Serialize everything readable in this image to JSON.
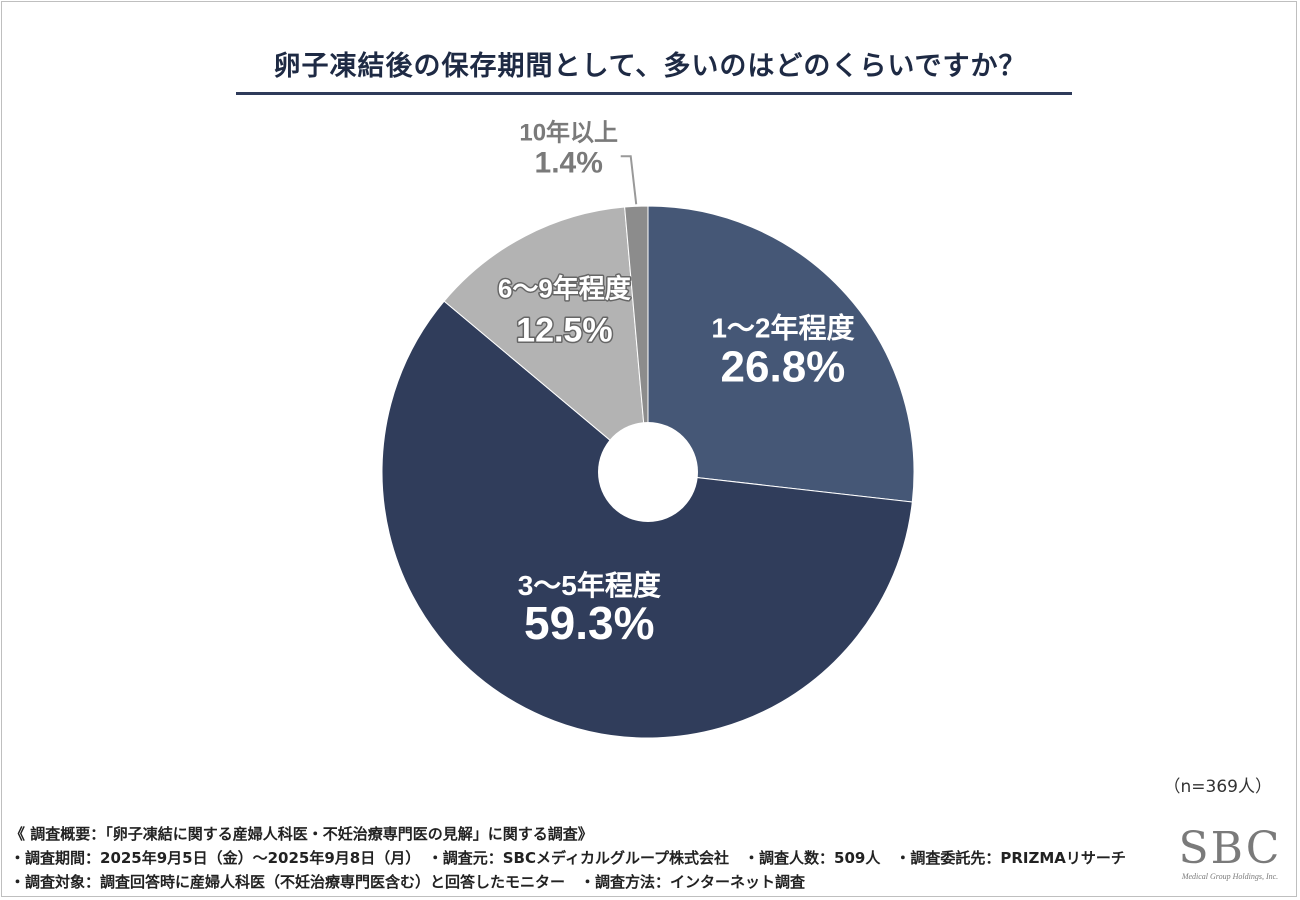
{
  "title": "卵子凍結後の保存期間として、多いのはどのくらいですか？",
  "sample_size": "（n=369人）",
  "footnotes": [
    "《 調査概要：「卵子凍結に関する産婦人科医・不妊治療専門医の見解」に関する調査》",
    "・調査期間：2025年9月5日（金）～2025年9月8日（月）　・調査元：SBCメディカルグループ株式会社　・調査人数：509人　・調査委託先：PRIZMAリサーチ",
    "・調査対象：調査回答時に産婦人科医（不妊治療専門医含む）と回答したモニター　・調査方法：インターネット調査"
  ],
  "logo": {
    "mark": "SBC",
    "sub": "Medical Group Holdings, Inc."
  },
  "chart_data": {
    "type": "pie",
    "title": "卵子凍結後の保存期間として、多いのはどのくらいですか？",
    "donut": true,
    "start": "12 o'clock, clockwise",
    "slices": [
      {
        "label": "1～2年程度",
        "value": 26.8,
        "value_label": "26.8%",
        "color": "#455776",
        "text_color": "#ffffff"
      },
      {
        "label": "3～5年程度",
        "value": 59.3,
        "value_label": "59.3%",
        "color": "#303d5b",
        "text_color": "#ffffff"
      },
      {
        "label": "6～9年程度",
        "value": 12.5,
        "value_label": "12.5%",
        "color": "#b3b3b3",
        "text_color": "#ffffff",
        "label_outline": "#666666"
      },
      {
        "label": "10年以上",
        "value": 1.4,
        "value_label": "1.4%",
        "color": "#8c8c8c",
        "text_color": "#7a7a7a",
        "outside": true
      }
    ]
  }
}
